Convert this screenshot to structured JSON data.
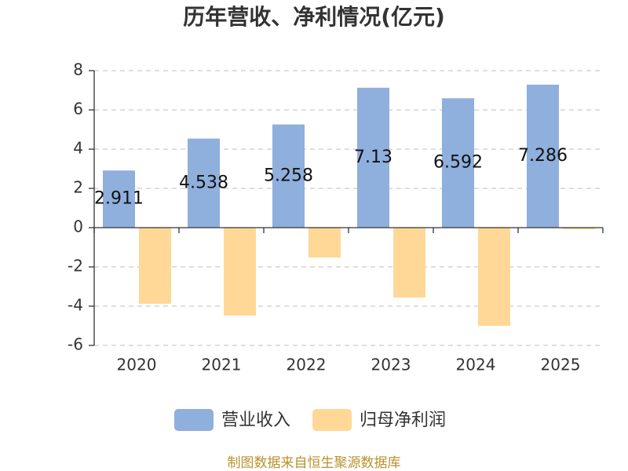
{
  "chart_data": {
    "type": "bar",
    "title": "历年营收、净利情况(亿元)",
    "categories": [
      "2020",
      "2021",
      "2022",
      "2023",
      "2024",
      "2025"
    ],
    "series": [
      {
        "name": "营业收入",
        "color": "#8fafdc",
        "show_data_labels": true,
        "values": [
          2.911,
          4.538,
          5.258,
          7.13,
          6.592,
          7.286
        ]
      },
      {
        "name": "归母净利润",
        "color": "#ffd897",
        "show_data_labels": false,
        "values": [
          -3.88,
          -4.48,
          -1.52,
          -3.56,
          -5.0,
          -0.08
        ]
      }
    ],
    "ylim": [
      -6,
      8
    ],
    "yticks": [
      8,
      6,
      4,
      2,
      0,
      -2,
      -4,
      -6
    ],
    "grid": true,
    "legend": "bottom"
  },
  "footer": "制图数据来自恒生聚源数据库"
}
